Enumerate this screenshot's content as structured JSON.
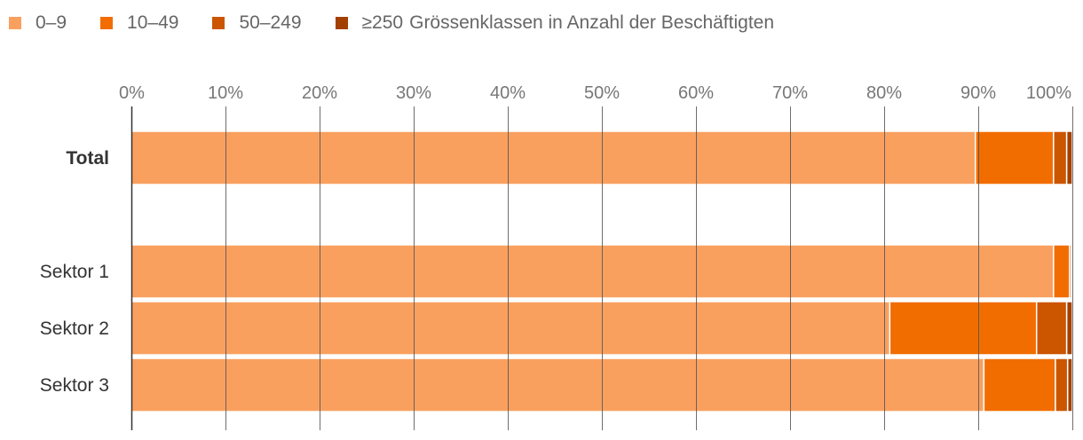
{
  "chart_data": {
    "type": "bar",
    "orientation": "horizontal",
    "stacked": true,
    "legend_placement": "top-left",
    "legend_title": "Grössenklassen in Anzahl der Beschäftigten",
    "grid": true,
    "xlim": [
      0,
      100
    ],
    "x_ticks": [
      "0%",
      "10%",
      "20%",
      "30%",
      "40%",
      "50%",
      "60%",
      "70%",
      "80%",
      "90%",
      "100%"
    ],
    "categories": [
      "Total",
      "Sektor 1",
      "Sektor 2",
      "Sektor 3"
    ],
    "category_bold": [
      true,
      false,
      false,
      false
    ],
    "series": [
      {
        "name": "0–9",
        "color": "#f9a05f",
        "values": [
          89.7,
          98.0,
          80.6,
          90.6
        ]
      },
      {
        "name": "10–49",
        "color": "#f26d00",
        "values": [
          8.3,
          1.7,
          15.6,
          7.6
        ]
      },
      {
        "name": "50–249",
        "color": "#cc5500",
        "values": [
          1.4,
          0.2,
          3.2,
          1.3
        ]
      },
      {
        "name": "≥250",
        "color": "#a34000",
        "values": [
          0.6,
          0.1,
          0.6,
          0.5
        ]
      }
    ]
  }
}
